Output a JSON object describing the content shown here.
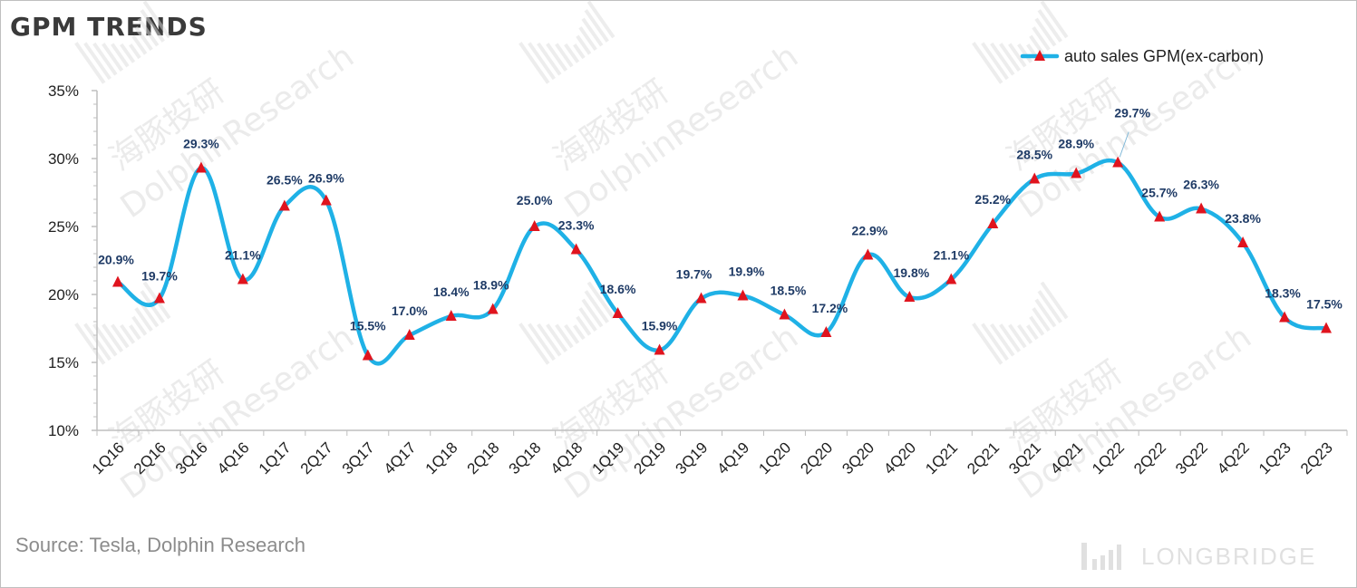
{
  "title": "GPM TRENDS",
  "source": "Source: Tesla, Dolphin Research",
  "brand": "LONGBRIDGE",
  "watermark": {
    "cn": "海豚投研",
    "en": "DolphinResearch"
  },
  "colors": {
    "line": "#1fb1e6",
    "marker": "#e0141e",
    "label": "#1f3b66",
    "axis": "#bfbfbf"
  },
  "chart_data": {
    "type": "line",
    "title": "GPM TRENDS",
    "xlabel": "",
    "ylabel": "",
    "ylim": [
      10,
      35
    ],
    "yticks": [
      "10%",
      "15%",
      "20%",
      "25%",
      "30%",
      "35%"
    ],
    "grid": false,
    "legend_position": "top-right",
    "categories": [
      "1Q16",
      "2Q16",
      "3Q16",
      "4Q16",
      "1Q17",
      "2Q17",
      "3Q17",
      "4Q17",
      "1Q18",
      "2Q18",
      "3Q18",
      "4Q18",
      "1Q19",
      "2Q19",
      "3Q19",
      "4Q19",
      "1Q20",
      "2Q20",
      "3Q20",
      "4Q20",
      "1Q21",
      "2Q21",
      "3Q21",
      "4Q21",
      "1Q22",
      "2Q22",
      "3Q22",
      "4Q22",
      "1Q23",
      "2Q23"
    ],
    "series": [
      {
        "name": "auto sales GPM(ex-carbon)",
        "values": [
          20.9,
          19.7,
          29.3,
          21.1,
          26.5,
          26.9,
          15.5,
          17.0,
          18.4,
          18.9,
          25.0,
          23.3,
          18.6,
          15.9,
          19.7,
          19.9,
          18.5,
          17.2,
          22.9,
          19.8,
          21.1,
          25.2,
          28.5,
          28.9,
          29.7,
          25.7,
          26.3,
          23.8,
          18.3,
          17.5
        ],
        "labels": [
          "20.9%",
          "19.7%",
          "29.3%",
          "21.1%",
          "26.5%",
          "26.9%",
          "15.5%",
          "17.0%",
          "18.4%",
          "18.9%",
          "25.0%",
          "23.3%",
          "18.6%",
          "15.9%",
          "19.7%",
          "19.9%",
          "18.5%",
          "17.2%",
          "22.9%",
          "19.8%",
          "21.1%",
          "25.2%",
          "28.5%",
          "28.9%",
          "29.7%",
          "25.7%",
          "26.3%",
          "23.8%",
          "18.3%",
          "17.5%"
        ]
      }
    ]
  }
}
